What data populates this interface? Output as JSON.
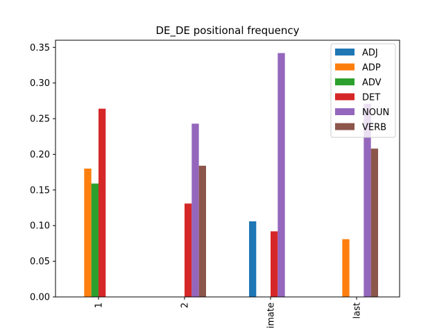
{
  "chart_data": {
    "type": "bar",
    "title": "DE_DE positional frequency",
    "xlabel": "",
    "ylabel": "",
    "categories": [
      "1",
      "2",
      "imate",
      "last"
    ],
    "ylim": [
      0,
      0.36
    ],
    "yticks": [
      "0.00",
      "0.05",
      "0.10",
      "0.15",
      "0.20",
      "0.25",
      "0.30",
      "0.35"
    ],
    "grid": false,
    "legend_position": "top-right",
    "series": [
      {
        "name": "ADJ",
        "color": "#1f77b4",
        "values": [
          0,
          0,
          0.106,
          0
        ]
      },
      {
        "name": "ADP",
        "color": "#ff7f0e",
        "values": [
          0.18,
          0,
          0,
          0.081
        ]
      },
      {
        "name": "ADV",
        "color": "#2ca02c",
        "values": [
          0.159,
          0,
          0,
          0
        ]
      },
      {
        "name": "DET",
        "color": "#d62728",
        "values": [
          0.264,
          0.131,
          0.092,
          0
        ]
      },
      {
        "name": "NOUN",
        "color": "#9467bd",
        "values": [
          0,
          0.243,
          0.342,
          0.271
        ]
      },
      {
        "name": "VERB",
        "color": "#8c564b",
        "values": [
          0,
          0.184,
          0,
          0.208
        ]
      }
    ]
  }
}
